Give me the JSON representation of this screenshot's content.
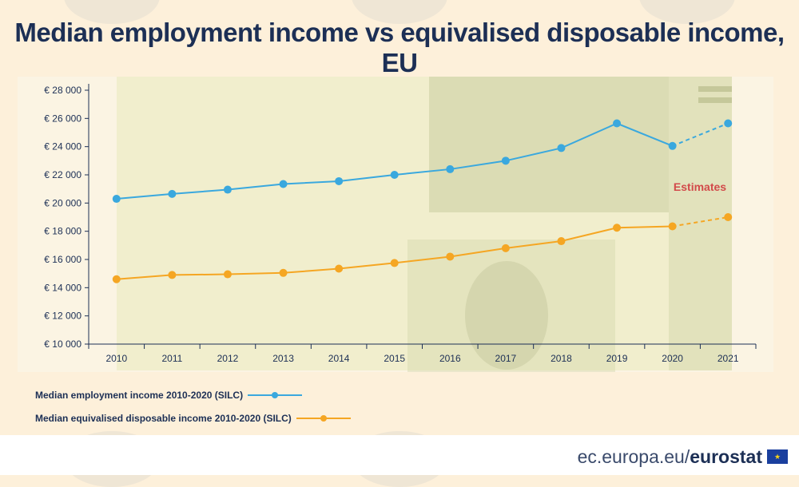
{
  "title": "Median employment income vs equivalised disposable income, EU",
  "footer": {
    "site": "ec.europa.eu/",
    "brand": "eurostat"
  },
  "annotation": "Estimates",
  "legend": [
    {
      "label": "Median employment income 2010-2020 (SILC)",
      "color": "#3aa8de"
    },
    {
      "label": "Median equivalised disposable income 2010-2020 (SILC)",
      "color": "#f5a623"
    }
  ],
  "chart_data": {
    "type": "line",
    "title": "Median employment income vs equivalised disposable income, EU",
    "x": [
      "2010",
      "2011",
      "2012",
      "2013",
      "2014",
      "2015",
      "2016",
      "2017",
      "2018",
      "2019",
      "2020",
      "2021"
    ],
    "ylim": [
      10000,
      28000
    ],
    "yticks": [
      10000,
      12000,
      14000,
      16000,
      18000,
      20000,
      22000,
      24000,
      26000,
      28000
    ],
    "ytick_labels": [
      "€ 10 000",
      "€ 12 000",
      "€ 14 000",
      "€ 16 000",
      "€ 18 000",
      "€ 20 000",
      "€ 22 000",
      "€ 24 000",
      "€ 26 000",
      "€ 28 000"
    ],
    "grid": false,
    "series": [
      {
        "name": "Median employment income 2010-2020 (SILC)",
        "color": "#3aa8de",
        "values": [
          20300,
          20650,
          20950,
          21350,
          21550,
          22000,
          22400,
          23000,
          23900,
          25650,
          24050,
          25650
        ],
        "estimated_from_index": 10
      },
      {
        "name": "Median equivalised disposable income 2010-2020 (SILC)",
        "color": "#f5a623",
        "values": [
          14600,
          14900,
          14950,
          15050,
          15350,
          15750,
          16200,
          16800,
          17300,
          18250,
          18350,
          19000
        ],
        "estimated_from_index": 10
      }
    ]
  }
}
